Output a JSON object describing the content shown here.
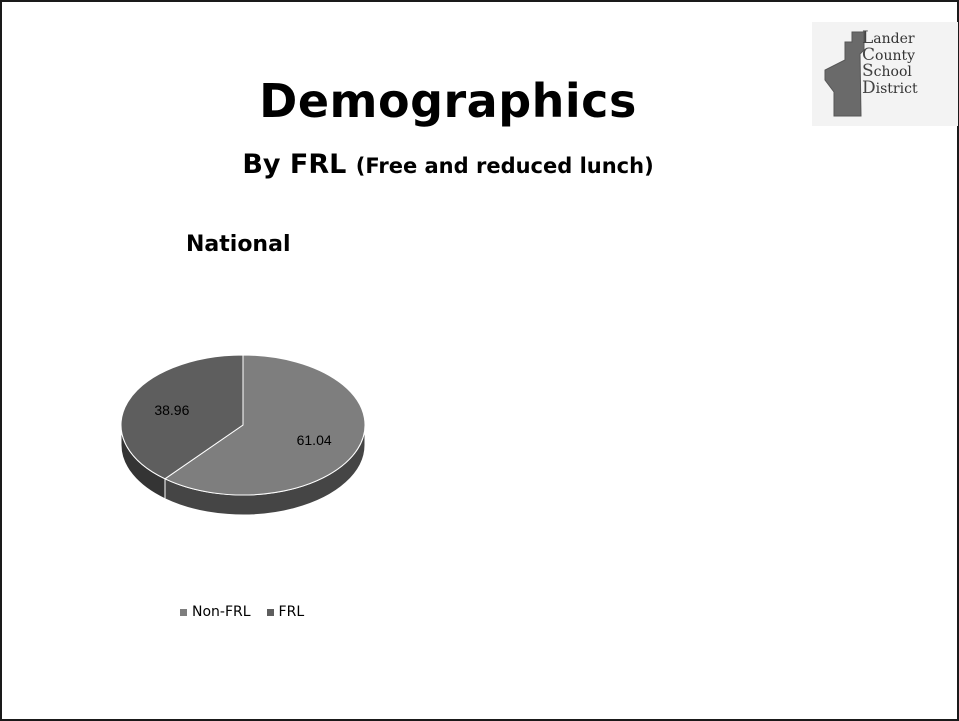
{
  "slide": {
    "title": "Demographics",
    "subtitle_main": "By FRL",
    "subtitle_paren": "(Free and reduced lunch)"
  },
  "logo": {
    "initials": [
      "L",
      "C",
      "S",
      "D"
    ],
    "rest": [
      "ander",
      "ounty",
      "chool",
      "istrict"
    ],
    "icon": "nevada-state-outline-icon"
  },
  "chart_data": {
    "type": "pie",
    "title": "National",
    "categories": [
      "Non-FRL",
      "FRL"
    ],
    "values": [
      61.04,
      38.96
    ],
    "data_labels": [
      "61.04",
      "38.96"
    ],
    "legend_position": "bottom",
    "colors": [
      "#7e7e7e",
      "#5e5e5e"
    ]
  }
}
